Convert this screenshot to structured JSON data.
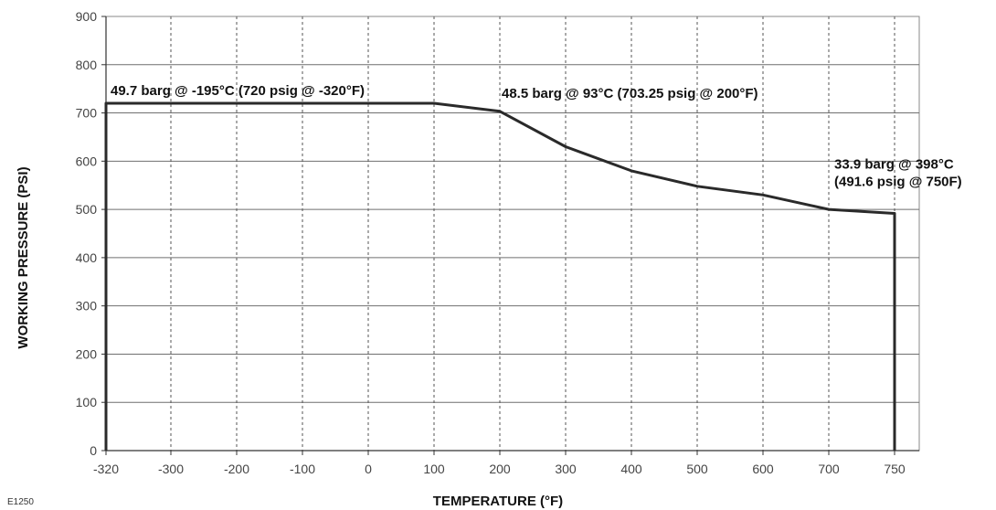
{
  "chart_data": {
    "type": "line",
    "xlabel": "TEMPERATURE (°F)",
    "ylabel": "WORKING   PRESSURE   (PSI)",
    "x_tick_labels": [
      "-320",
      "-300",
      "-200",
      "-100",
      "0",
      "100",
      "200",
      "300",
      "400",
      "500",
      "600",
      "700",
      "750"
    ],
    "y_ticks": [
      0,
      100,
      200,
      300,
      400,
      500,
      600,
      700,
      800,
      900
    ],
    "ylim": [
      0,
      900
    ],
    "grid": {
      "vertical": "dashed",
      "horizontal": "solid"
    },
    "series": [
      {
        "points": [
          {
            "x": -320,
            "y": 0
          },
          {
            "x": -320,
            "y": 720
          },
          {
            "x": 100,
            "y": 720
          },
          {
            "x": 200,
            "y": 703.25
          },
          {
            "x": 300,
            "y": 630
          },
          {
            "x": 400,
            "y": 580
          },
          {
            "x": 500,
            "y": 548
          },
          {
            "x": 600,
            "y": 530
          },
          {
            "x": 700,
            "y": 500
          },
          {
            "x": 750,
            "y": 491.6
          },
          {
            "x": 750,
            "y": 0
          }
        ]
      }
    ],
    "annotations": [
      {
        "lines": [
          "49.7 barg @ -195°C (720 psig @ -320°F)"
        ],
        "x": -320,
        "y": 720
      },
      {
        "lines": [
          "48.5 barg @ 93°C (703.25 psig @ 200°F)"
        ],
        "x": 200,
        "y": 703.25
      },
      {
        "lines": [
          "33.9 barg @ 398°C",
          "(491.6 psig @ 750F)"
        ],
        "x": 750,
        "y": 491.6
      }
    ]
  },
  "figure_code": "E1250"
}
